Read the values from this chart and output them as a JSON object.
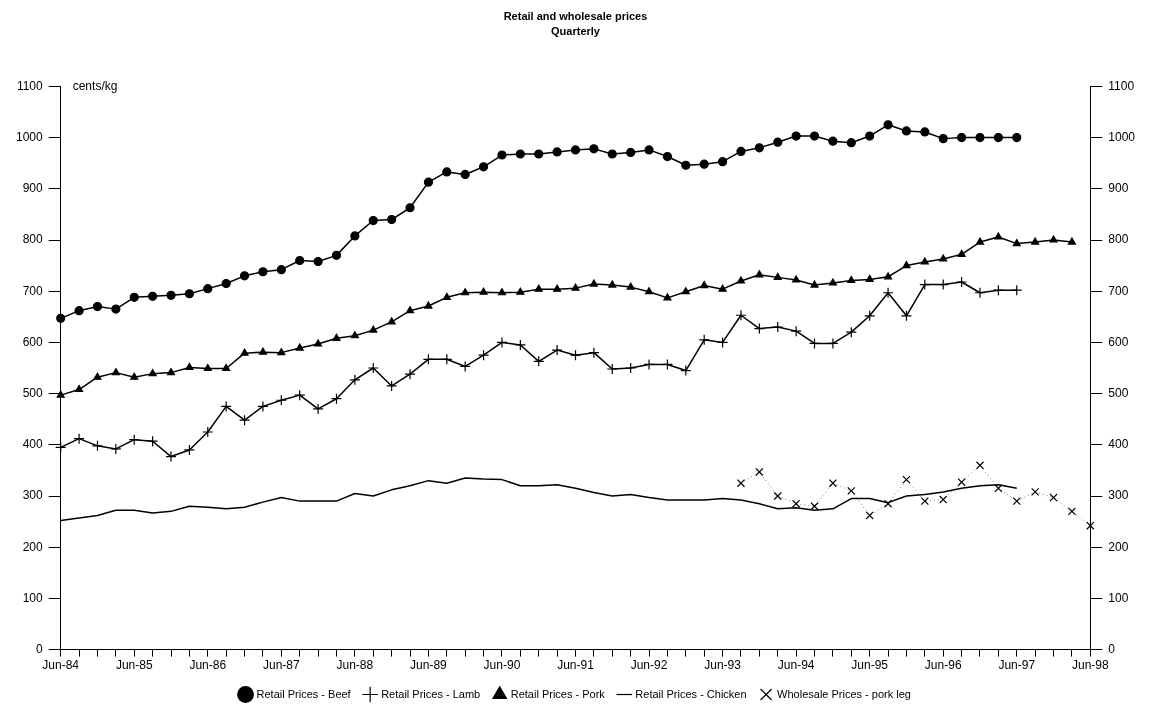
{
  "chart_data": {
    "type": "line",
    "title": "Retail and wholesale prices",
    "subtitle": "Quarterly",
    "ylabel": "cents/kg",
    "categories": [
      "Jun-84",
      null,
      null,
      null,
      "Jun-85",
      null,
      null,
      null,
      "Jun-86",
      null,
      null,
      null,
      "Jun-87",
      null,
      null,
      null,
      "Jun-88",
      null,
      null,
      null,
      "Jun-89",
      null,
      null,
      null,
      "Jun-90",
      null,
      null,
      null,
      "Jun-91",
      null,
      null,
      null,
      "Jun-92",
      null,
      null,
      null,
      "Jun-93",
      null,
      null,
      null,
      "Jun-94",
      null,
      null,
      null,
      "Jun-95",
      null,
      null,
      null,
      "Jun-96",
      null,
      null,
      null,
      "Jun-97",
      null,
      null,
      null,
      "Jun-98"
    ],
    "ylim": [
      0,
      1100
    ],
    "yticks": [
      0,
      100,
      200,
      300,
      400,
      500,
      600,
      700,
      800,
      900,
      1000,
      1100
    ],
    "y2lim": [
      0,
      1100
    ],
    "y2ticks": [
      0,
      100,
      200,
      300,
      400,
      500,
      600,
      700,
      800,
      900,
      1000,
      1100
    ],
    "grid": false,
    "legend": "bottom",
    "series": [
      {
        "name": "Retail Prices - Beef",
        "color": "#000000",
        "marker": "circle",
        "line_style": "solid",
        "values": [
          647,
          662,
          670,
          665,
          688,
          690,
          692,
          695,
          705,
          715,
          730,
          738,
          742,
          760,
          758,
          770,
          808,
          838,
          840,
          863,
          913,
          933,
          928,
          943,
          966,
          968,
          968,
          972,
          976,
          978,
          968,
          971,
          976,
          963,
          946,
          948,
          953,
          973,
          980,
          991,
          1003,
          1003,
          993,
          990,
          1003,
          1025,
          1013,
          1011,
          998,
          1000,
          1000,
          1000,
          1000,
          null,
          null,
          null,
          null
        ]
      },
      {
        "name": "Retail Prices - Lamb",
        "color": "#000000",
        "marker": "cross",
        "line_style": "solid",
        "values": [
          395,
          412,
          398,
          392,
          410,
          407,
          377,
          390,
          425,
          475,
          448,
          475,
          487,
          497,
          470,
          490,
          527,
          550,
          515,
          538,
          567,
          567,
          553,
          575,
          600,
          595,
          563,
          585,
          575,
          580,
          548,
          550,
          557,
          557,
          545,
          605,
          600,
          653,
          627,
          630,
          622,
          598,
          598,
          620,
          652,
          697,
          652,
          713,
          713,
          718,
          697,
          702,
          702,
          null,
          null,
          null,
          null
        ]
      },
      {
        "name": "Retail Prices - Pork",
        "color": "#000000",
        "marker": "triangle",
        "line_style": "solid",
        "values": [
          497,
          508,
          532,
          541,
          532,
          539,
          541,
          551,
          549,
          549,
          579,
          581,
          580,
          589,
          597,
          608,
          613,
          624,
          640,
          662,
          671,
          688,
          697,
          698,
          697,
          698,
          704,
          704,
          706,
          714,
          712,
          708,
          699,
          687,
          699,
          711,
          704,
          720,
          732,
          727,
          722,
          712,
          716,
          721,
          723,
          728,
          750,
          757,
          763,
          772,
          796,
          806,
          793,
          796,
          800,
          796,
          null
        ]
      },
      {
        "name": "Retail Prices - Chicken",
        "color": "#000000",
        "marker": "none",
        "line_style": "solid",
        "values": [
          252,
          257,
          262,
          272,
          272,
          267,
          270,
          280,
          278,
          275,
          278,
          288,
          297,
          290,
          290,
          290,
          305,
          300,
          312,
          320,
          330,
          325,
          335,
          333,
          332,
          320,
          320,
          322,
          315,
          307,
          300,
          303,
          297,
          292,
          292,
          292,
          295,
          292,
          285,
          275,
          277,
          272,
          275,
          295,
          295,
          287,
          300,
          303,
          308,
          315,
          320,
          322,
          315,
          null,
          null,
          null,
          null
        ]
      },
      {
        "name": "Wholesale Prices - pork leg",
        "color": "#000000",
        "marker": "x",
        "line_style": "dotted",
        "values": [
          null,
          null,
          null,
          null,
          null,
          null,
          null,
          null,
          null,
          null,
          null,
          null,
          null,
          null,
          null,
          null,
          null,
          null,
          null,
          null,
          null,
          null,
          null,
          null,
          null,
          null,
          null,
          null,
          null,
          null,
          null,
          null,
          null,
          null,
          null,
          null,
          null,
          325,
          347,
          300,
          285,
          280,
          325,
          310,
          262,
          285,
          332,
          290,
          293,
          327,
          360,
          315,
          290,
          308,
          297,
          270,
          242
        ]
      }
    ]
  }
}
